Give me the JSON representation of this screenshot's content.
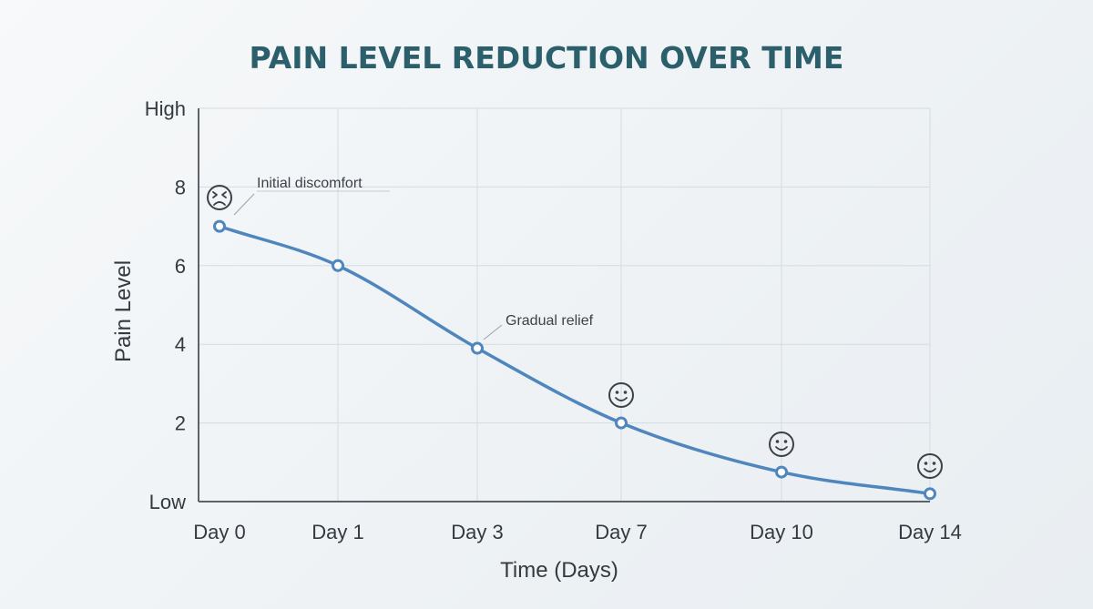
{
  "colors": {
    "title": "#2b5f6b",
    "line": "#4f86bd",
    "grid": "#d3dce3",
    "axis": "#5b6268",
    "text": "#333a40",
    "face": "#3b4248"
  },
  "chart_data": {
    "type": "line",
    "title": "PAIN LEVEL REDUCTION OVER TIME",
    "xlabel": "Time (Days)",
    "ylabel": "Pain Level",
    "categories": [
      "Day 0",
      "Day 1",
      "Day 3",
      "Day 7",
      "Day 10",
      "Day 14"
    ],
    "series": [
      {
        "values": [
          7.0,
          6.0,
          3.9,
          2.0,
          0.75,
          0.2
        ]
      }
    ],
    "ylim": [
      0,
      10
    ],
    "y_ticks": [
      {
        "value": 10,
        "label": "High"
      },
      {
        "value": 8,
        "label": "8"
      },
      {
        "value": 6,
        "label": "6"
      },
      {
        "value": 4,
        "label": "4"
      },
      {
        "value": 2,
        "label": "2"
      },
      {
        "value": 0,
        "label": "Low"
      }
    ],
    "grid": true,
    "annotations": [
      {
        "text": "Initial discomfort",
        "point_index": 0
      },
      {
        "text": "Gradual relief",
        "point_index": 2
      }
    ],
    "face_icons": [
      {
        "point_index": 0,
        "icon": "sad-face-icon"
      },
      {
        "point_index": 3,
        "icon": "smiley-face-icon"
      },
      {
        "point_index": 4,
        "icon": "smiley-face-icon"
      },
      {
        "point_index": 5,
        "icon": "smiley-face-icon"
      }
    ]
  }
}
